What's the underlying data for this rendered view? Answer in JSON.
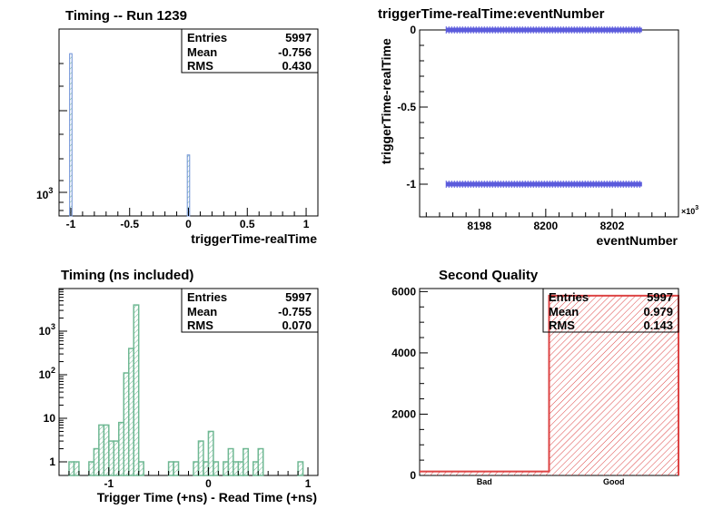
{
  "chart_data": [
    {
      "type": "histogram",
      "title": "Timing -- Run 1239",
      "xlabel": "triggerTime-realTime",
      "ylabel": "",
      "xlim": [
        -1.1,
        1.1
      ],
      "log_y": true,
      "x_ticks": [
        "-1",
        "-0.5",
        "0",
        "0.5",
        "1"
      ],
      "y_ticks": [
        "10^3"
      ],
      "bins": [
        {
          "x": -1.0,
          "count": 4500
        },
        {
          "x": 0.0,
          "count": 1500
        }
      ],
      "stats": {
        "entries": "5997",
        "mean": "-0.756",
        "rms": "0.430"
      },
      "colors": {
        "line": "#6b8fd6"
      }
    },
    {
      "type": "scatter",
      "title": "triggerTime-realTime:eventNumber",
      "xlabel": "eventNumber",
      "ylabel": "triggerTime-realTime",
      "x_multiplier": "×10^3",
      "xlim": [
        8196.2,
        8204
      ],
      "ylim": [
        -1.1,
        0.0
      ],
      "x_ticks": [
        "8198",
        "8200",
        "8202"
      ],
      "y_ticks": [
        "0",
        "-0.5",
        "-1"
      ],
      "series": [
        {
          "x_range": [
            8197.0,
            8202.9
          ],
          "y": 0.0
        },
        {
          "x_range": [
            8197.0,
            8202.9
          ],
          "y": -1.0
        }
      ],
      "colors": {
        "marker": "#5b5bdc"
      }
    },
    {
      "type": "histogram",
      "title": "Timing (ns included)",
      "xlabel": "Trigger Time (+ns) - Read Time (+ns)",
      "ylabel": "",
      "xlim": [
        -1.5,
        1.1
      ],
      "log_y": true,
      "x_ticks": [
        "-1",
        "0",
        "1"
      ],
      "y_ticks": [
        "1",
        "10",
        "10^2",
        "10^3"
      ],
      "bins": [
        {
          "x": -1.375,
          "count": 1
        },
        {
          "x": -1.325,
          "count": 1
        },
        {
          "x": -1.175,
          "count": 1
        },
        {
          "x": -1.125,
          "count": 2
        },
        {
          "x": -1.075,
          "count": 7
        },
        {
          "x": -1.025,
          "count": 7
        },
        {
          "x": -0.975,
          "count": 3
        },
        {
          "x": -0.925,
          "count": 3
        },
        {
          "x": -0.875,
          "count": 8
        },
        {
          "x": -0.825,
          "count": 110
        },
        {
          "x": -0.775,
          "count": 400
        },
        {
          "x": -0.725,
          "count": 4000
        },
        {
          "x": -0.675,
          "count": 1
        },
        {
          "x": -0.375,
          "count": 1
        },
        {
          "x": -0.325,
          "count": 1
        },
        {
          "x": -0.125,
          "count": 1
        },
        {
          "x": -0.075,
          "count": 3
        },
        {
          "x": -0.025,
          "count": 1
        },
        {
          "x": 0.025,
          "count": 5
        },
        {
          "x": 0.075,
          "count": 1
        },
        {
          "x": 0.175,
          "count": 1
        },
        {
          "x": 0.225,
          "count": 2
        },
        {
          "x": 0.275,
          "count": 1
        },
        {
          "x": 0.325,
          "count": 1
        },
        {
          "x": 0.375,
          "count": 2
        },
        {
          "x": 0.475,
          "count": 1
        },
        {
          "x": 0.525,
          "count": 2
        },
        {
          "x": 0.925,
          "count": 1
        }
      ],
      "stats": {
        "entries": "5997",
        "mean": "-0.755",
        "rms": "0.070"
      },
      "colors": {
        "line": "#6fb893"
      }
    },
    {
      "type": "bar",
      "title": "Second Quality",
      "xlabel": "",
      "ylabel": "",
      "categories": [
        "Bad",
        "Good"
      ],
      "values": [
        130,
        5867
      ],
      "ylim": [
        0,
        6100
      ],
      "y_ticks": [
        "0",
        "2000",
        "4000",
        "6000"
      ],
      "stats": {
        "entries": "5997",
        "mean": "0.979",
        "rms": "0.143"
      },
      "colors": {
        "line": "#dd4444",
        "hatch": "#dd4444"
      }
    }
  ],
  "stats_labels": {
    "entries": "Entries",
    "mean": "Mean",
    "rms": "RMS"
  }
}
